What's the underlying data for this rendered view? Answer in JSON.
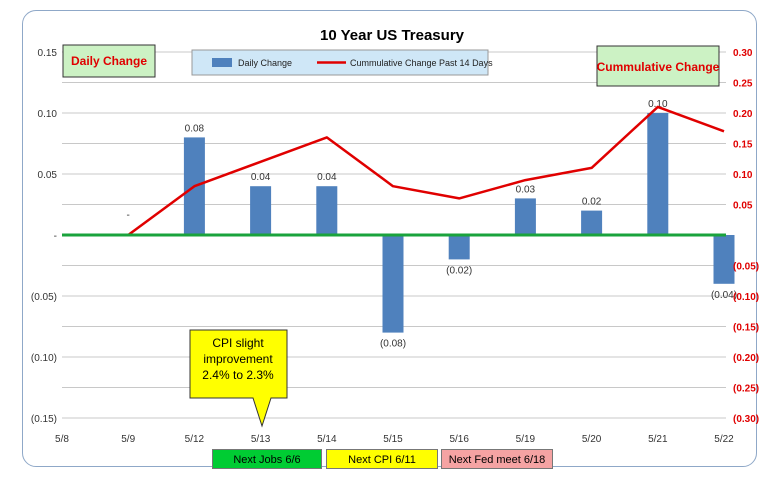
{
  "chart_data": {
    "type": "bar+line",
    "title": "10 Year US Treasury",
    "categories": [
      "5/8",
      "5/9",
      "5/12",
      "5/13",
      "5/14",
      "5/15",
      "5/16",
      "5/19",
      "5/20",
      "5/21",
      "5/22"
    ],
    "series": [
      {
        "name": "Daily Change",
        "type": "bar",
        "axis": "left",
        "color": "#4f81bd",
        "values": [
          0,
          0,
          0.08,
          0.04,
          0.04,
          -0.08,
          -0.02,
          0.03,
          0.02,
          0.1,
          -0.04
        ],
        "data_labels": [
          "",
          "-",
          "0.08",
          "0.04",
          "0.04",
          "(0.08)",
          "(0.02)",
          "0.03",
          "0.02",
          "0.10",
          "(0.04)"
        ]
      },
      {
        "name": "Cummulative Change Past 14 Days",
        "type": "line",
        "axis": "right",
        "color": "#e00000",
        "values": [
          0,
          0,
          0.08,
          0.12,
          0.16,
          0.08,
          0.06,
          0.09,
          0.11,
          0.21,
          0.17
        ]
      }
    ],
    "y_left": {
      "range": [
        -0.15,
        0.15
      ],
      "ticks": [
        0.15,
        0.1,
        0.05,
        0,
        -0.05,
        -0.1,
        -0.15
      ],
      "tick_labels": [
        "0.15",
        "0.10",
        "0.05",
        "-",
        "(0.05)",
        "(0.10)",
        "(0.15)"
      ]
    },
    "y_right": {
      "range": [
        -0.3,
        0.3
      ],
      "ticks": [
        0.3,
        0.25,
        0.2,
        0.15,
        0.1,
        0.05,
        -0.05,
        -0.1,
        -0.15,
        -0.2,
        -0.25,
        -0.3
      ],
      "tick_labels": [
        "0.30",
        "0.25",
        "0.20",
        "0.15",
        "0.10",
        "0.05",
        "(0.05)",
        "(0.10)",
        "(0.15)",
        "(0.20)",
        "(0.25)",
        "(0.30)"
      ],
      "color": "#e00000"
    },
    "grid": true,
    "legend": "top-center",
    "zero_line_color": "#1aa33c",
    "annotations": {
      "left_label": "Daily Change",
      "right_label": "Cummulative Change",
      "callout": {
        "lines": [
          "CPI slight",
          "improvement",
          "2.4% to 2.3%"
        ],
        "category": "5/13",
        "fill": "#ffff00"
      },
      "tags": [
        {
          "text": "Next Jobs 6/6",
          "fill": "#00cc33"
        },
        {
          "text": "Next CPI 6/11",
          "fill": "#ffff00"
        },
        {
          "text": "Next Fed meet 6/18",
          "fill": "#f5a3a3"
        }
      ]
    }
  }
}
